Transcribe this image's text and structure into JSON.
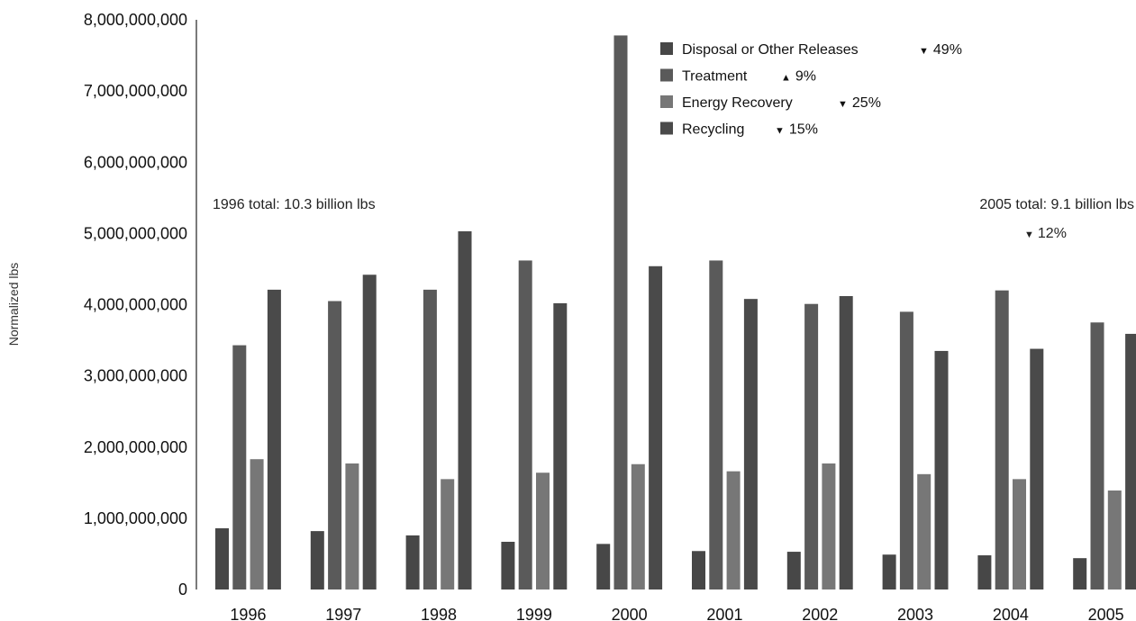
{
  "chart_data": {
    "type": "bar",
    "ylabel": "Normalized lbs",
    "xlabel": "",
    "ylim": [
      0,
      8000000000
    ],
    "yticks": [
      0,
      1000000000,
      2000000000,
      3000000000,
      4000000000,
      5000000000,
      6000000000,
      7000000000,
      8000000000
    ],
    "ytick_labels": [
      "0",
      "1,000,000,000",
      "2,000,000,000",
      "3,000,000,000",
      "4,000,000,000",
      "5,000,000,000",
      "6,000,000,000",
      "7,000,000,000",
      "8,000,000,000"
    ],
    "categories": [
      "1996",
      "1997",
      "1998",
      "1999",
      "2000",
      "2001",
      "2002",
      "2003",
      "2004",
      "2005"
    ],
    "series": [
      {
        "name": "Disposal or Other Releases",
        "change_symbol": "▼",
        "change_text": "49%",
        "color": "#474747",
        "values": [
          860000000,
          820000000,
          760000000,
          670000000,
          640000000,
          540000000,
          530000000,
          490000000,
          480000000,
          440000000
        ]
      },
      {
        "name": "Treatment",
        "change_symbol": "▲",
        "change_text": "9%",
        "color": "#5a5a5a",
        "values": [
          3430000000,
          4050000000,
          4210000000,
          4620000000,
          7780000000,
          4620000000,
          4010000000,
          3900000000,
          4200000000,
          3750000000
        ]
      },
      {
        "name": "Energy Recovery",
        "change_symbol": "▼",
        "change_text": "25%",
        "color": "#777777",
        "values": [
          1830000000,
          1770000000,
          1550000000,
          1640000000,
          1760000000,
          1660000000,
          1770000000,
          1620000000,
          1550000000,
          1390000000
        ]
      },
      {
        "name": "Recycling",
        "change_symbol": "▼",
        "change_text": "15%",
        "color": "#4a4a4a",
        "values": [
          4210000000,
          4420000000,
          5030000000,
          4020000000,
          4540000000,
          4080000000,
          4120000000,
          3350000000,
          3380000000,
          3590000000
        ]
      }
    ],
    "legend_position": "top-center",
    "annotations": {
      "left_total": "1996 total: 10.3 billion lbs",
      "right_total": "2005 total: 9.1 billion lbs",
      "right_change_symbol": "▼",
      "right_change_text": "12%"
    },
    "grid": false
  }
}
